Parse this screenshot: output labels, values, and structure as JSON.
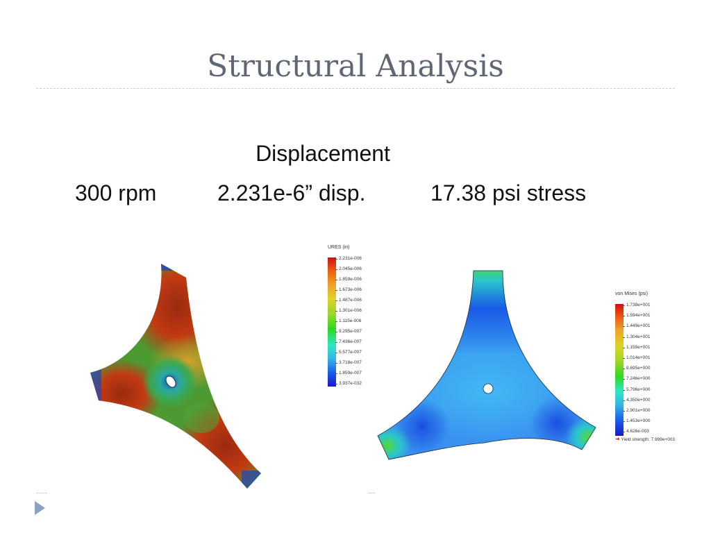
{
  "slide": {
    "title": "Structural Analysis",
    "heading": "Displacement",
    "stats": {
      "rpm": "300 rpm",
      "displacement": "2.231e-6” disp.",
      "stress": "17.38 psi stress"
    }
  },
  "displacement_legend": {
    "title": "URES (in)",
    "ticks": [
      "2.231e-006",
      "2.045e-006",
      "1.859e-006",
      "1.673e-006",
      "1.487e-006",
      "1.301e-006",
      "1.115e-006",
      "9.295e-007",
      "7.436e-007",
      "5.577e-007",
      "3.718e-007",
      "1.859e-007",
      "3.937e-032"
    ]
  },
  "stress_legend": {
    "title": "von Mises (psi)",
    "ticks": [
      "1.738e+001",
      "1.594e+001",
      "1.449e+001",
      "1.304e+001",
      "1.159e+001",
      "1.014e+001",
      "8.695e+000",
      "7.246e+000",
      "5.796e+000",
      "4.350e+000",
      "2.901e+000",
      "1.453e+000",
      "4.626e-003"
    ],
    "yield_label": "Yield strength: 7.999e+003"
  },
  "colors": {
    "title": "#5f6774",
    "bullet": "#8aa0c4"
  },
  "icons": {
    "bullet": "triangle-right-icon"
  }
}
